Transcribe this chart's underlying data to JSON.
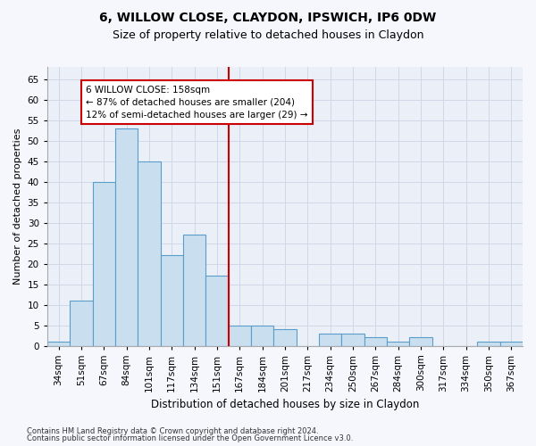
{
  "title1": "6, WILLOW CLOSE, CLAYDON, IPSWICH, IP6 0DW",
  "title2": "Size of property relative to detached houses in Claydon",
  "xlabel": "Distribution of detached houses by size in Claydon",
  "ylabel": "Number of detached properties",
  "categories": [
    "34sqm",
    "51sqm",
    "67sqm",
    "84sqm",
    "101sqm",
    "117sqm",
    "134sqm",
    "151sqm",
    "167sqm",
    "184sqm",
    "201sqm",
    "217sqm",
    "234sqm",
    "250sqm",
    "267sqm",
    "284sqm",
    "300sqm",
    "317sqm",
    "334sqm",
    "350sqm",
    "367sqm"
  ],
  "values": [
    1,
    11,
    40,
    53,
    45,
    22,
    27,
    17,
    5,
    5,
    4,
    0,
    3,
    3,
    2,
    1,
    2,
    0,
    0,
    1,
    1
  ],
  "bar_color": "#c9dff0",
  "bar_edge_color": "#5a9dc8",
  "bar_edge_width": 0.8,
  "vline_x": 7.5,
  "vline_color": "#cc0000",
  "annotation_text": "6 WILLOW CLOSE: 158sqm\n← 87% of detached houses are smaller (204)\n12% of semi-detached houses are larger (29) →",
  "annotation_box_color": "#ffffff",
  "annotation_box_edge": "#cc0000",
  "annotation_fontsize": 7.5,
  "footnote1": "Contains HM Land Registry data © Crown copyright and database right 2024.",
  "footnote2": "Contains public sector information licensed under the Open Government Licence v3.0.",
  "ylim": [
    0,
    68
  ],
  "yticks": [
    0,
    5,
    10,
    15,
    20,
    25,
    30,
    35,
    40,
    45,
    50,
    55,
    60,
    65
  ],
  "grid_color": "#d0d8e8",
  "bg_color": "#eaeff8",
  "fig_bg_color": "#f5f7fc",
  "title1_fontsize": 10,
  "title2_fontsize": 9,
  "xlabel_fontsize": 8.5,
  "ylabel_fontsize": 8,
  "tick_fontsize": 7.5
}
